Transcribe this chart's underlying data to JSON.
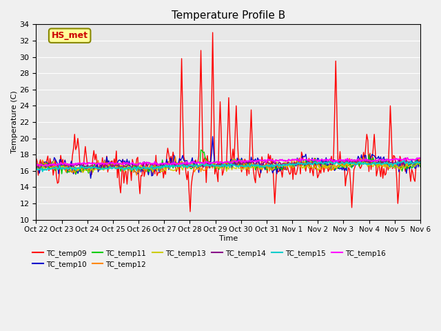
{
  "title": "Temperature Profile B",
  "xlabel": "Time",
  "ylabel": "Temperature (C)",
  "ylim": [
    10,
    34
  ],
  "yticks": [
    10,
    12,
    14,
    16,
    18,
    20,
    22,
    24,
    26,
    28,
    30,
    32,
    34
  ],
  "bg_color": "#e8e8e8",
  "series_colors": {
    "TC_temp09": "#ff0000",
    "TC_temp10": "#0000cc",
    "TC_temp11": "#00cc00",
    "TC_temp12": "#ff8800",
    "TC_temp13": "#cccc00",
    "TC_temp14": "#880088",
    "TC_temp15": "#00cccc",
    "TC_temp16": "#ff00ff"
  },
  "annotation_label": "HS_met",
  "annotation_color": "#cc0000",
  "annotation_bg": "#ffff99",
  "n_points": 360,
  "tick_labels": [
    "Oct 22",
    "Oct 23",
    "Oct 24",
    "Oct 25",
    "Oct 26",
    "Oct 27",
    "Oct 28",
    "Oct 29",
    "Oct 30",
    "Oct 31",
    "Nov 1",
    "Nov 2",
    "Nov 3",
    "Nov 4",
    "Nov 5",
    "Nov 6"
  ]
}
